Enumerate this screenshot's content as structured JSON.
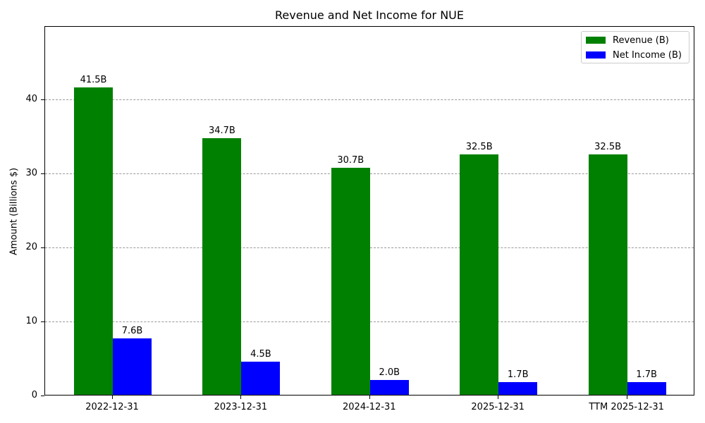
{
  "chart_data": {
    "type": "bar",
    "title": "Revenue and Net Income for NUE",
    "xlabel": "",
    "ylabel": "Amount (Billions $)",
    "categories": [
      "2022-12-31",
      "2023-12-31",
      "2024-12-31",
      "2025-12-31",
      "TTM 2025-12-31"
    ],
    "series": [
      {
        "name": "Revenue (B)",
        "color": "#008000",
        "values": [
          41.5,
          34.7,
          30.7,
          32.5,
          32.5
        ],
        "labels": [
          "41.5B",
          "34.7B",
          "30.7B",
          "32.5B",
          "32.5B"
        ]
      },
      {
        "name": "Net Income (B)",
        "color": "#0000ff",
        "values": [
          7.6,
          4.5,
          2.0,
          1.7,
          1.7
        ],
        "labels": [
          "7.6B",
          "4.5B",
          "2.0B",
          "1.7B",
          "1.7B"
        ]
      }
    ],
    "ylim": [
      0,
      49.9
    ],
    "yticks": [
      0,
      10,
      20,
      30,
      40
    ],
    "grid": "y, dashed",
    "legend_position": "upper right"
  }
}
